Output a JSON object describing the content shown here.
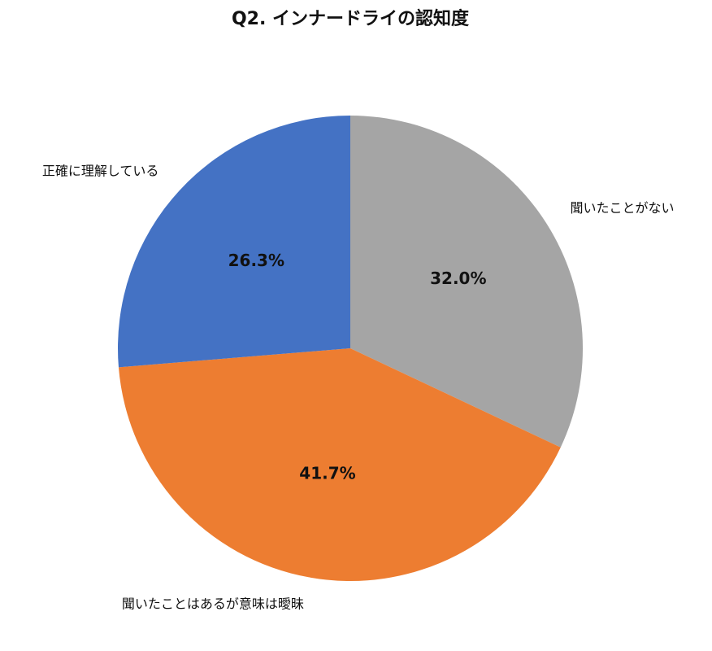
{
  "chart_data": {
    "type": "pie",
    "title": "Q2. インナードライの認知度",
    "categories": [
      "聞いたことがない",
      "聞いたことはあるが意味は曖昧",
      "正確に理解している"
    ],
    "values": [
      32.0,
      41.7,
      26.3
    ],
    "value_labels": [
      "32.0%",
      "41.7%",
      "26.3%"
    ],
    "colors": [
      "#a5a5a5",
      "#ed7d31",
      "#4472c4"
    ]
  }
}
